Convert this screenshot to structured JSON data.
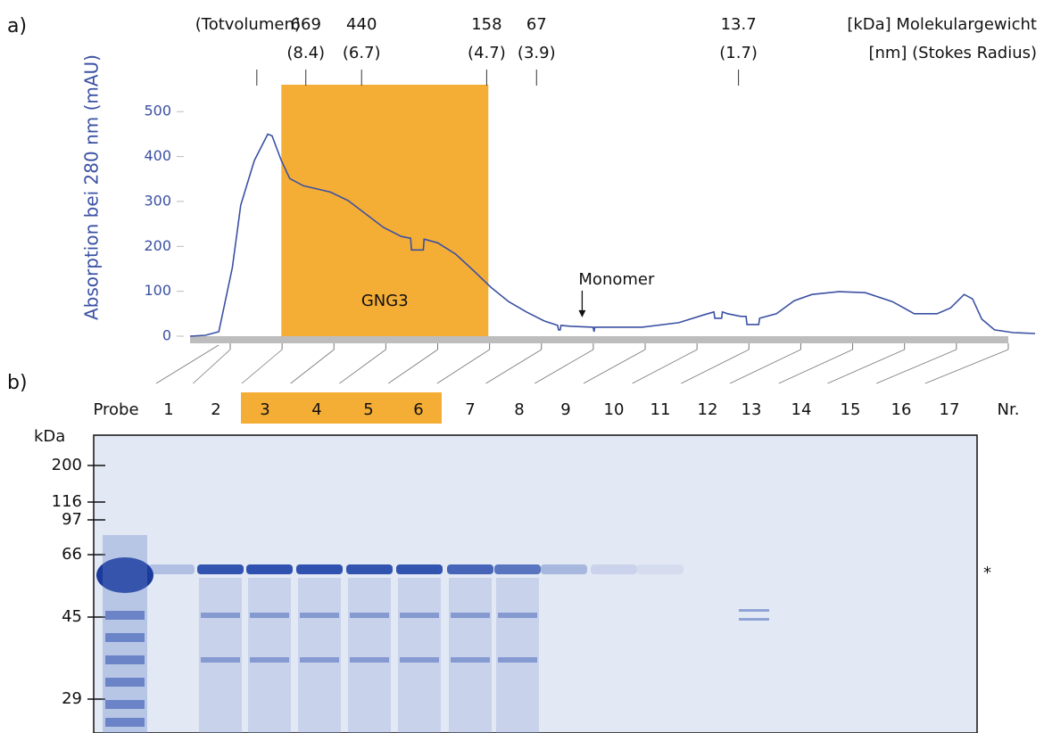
{
  "panel_labels": [
    "a)",
    "b)"
  ],
  "chart_data": {
    "type": "line",
    "y_label": "Absorption bei 280 nm (mAU)",
    "ylim": [
      0,
      560
    ],
    "yticks": [
      0,
      100,
      200,
      300,
      400,
      500
    ],
    "xlim": [
      0,
      100
    ],
    "x": [
      0,
      1.8,
      3.4,
      5.0,
      6.0,
      7.6,
      9.2,
      9.7,
      10.8,
      11.8,
      13.4,
      16.6,
      18.7,
      20.8,
      22.9,
      25.0,
      26.1,
      26.2,
      27.6,
      27.7,
      29.3,
      31.4,
      33.5,
      35.6,
      37.7,
      39.8,
      41.9,
      43.5,
      43.6,
      43.8,
      43.9,
      45.1,
      47.7,
      47.8,
      47.9,
      49.3,
      53.5,
      57.8,
      60.9,
      62.0,
      62.1,
      62.9,
      63.0,
      63.6,
      65.2,
      65.8,
      65.9,
      67.3,
      67.4,
      69.4,
      71.5,
      73.6,
      76.8,
      79.9,
      83.1,
      85.7,
      88.4,
      90.0,
      91.6,
      92.6,
      93.7,
      95.2,
      97.4,
      100
    ],
    "series": [
      {
        "color": "#3b51a3",
        "values": [
          0,
          2,
          10,
          153,
          292,
          391,
          450,
          446,
          391,
          351,
          335,
          321,
          302,
          272,
          242,
          222,
          218,
          192,
          192,
          216,
          208,
          183,
          147,
          109,
          77,
          54,
          34,
          24,
          14,
          14,
          24,
          22,
          20,
          10,
          20,
          20,
          20,
          30,
          48,
          54,
          40,
          40,
          54,
          50,
          44,
          44,
          26,
          26,
          40,
          50,
          79,
          93,
          99,
          97,
          77,
          50,
          50,
          63,
          93,
          83,
          38,
          14,
          8,
          6
        ]
      }
    ],
    "top_axis": {
      "markers": [
        {
          "x": 7.9,
          "label": "(Totvolumen)"
        },
        {
          "x": 13.7,
          "kda": 669,
          "radius": "(8.4)"
        },
        {
          "x": 20.3,
          "kda": 440,
          "radius": "(6.7)"
        },
        {
          "x": 35.1,
          "kda": 158,
          "radius": "(4.7)"
        },
        {
          "x": 41.0,
          "kda": 67,
          "radius": "(3.9)"
        },
        {
          "x": 64.9,
          "kda": 13.7,
          "radius": "(1.7)"
        }
      ],
      "kda_title": "[kDa] Molekulargewicht",
      "radius_title": "[nm] (Stokes Radius)"
    },
    "highlight": {
      "x": [
        10.8,
        35.3
      ],
      "label": "GNG3",
      "color": "#f5ae35"
    },
    "annotation": {
      "x": 46.4,
      "y": 30,
      "label": "Monomer"
    }
  },
  "gel": {
    "y_label": "kDa",
    "yticks": [
      200,
      116,
      97,
      66,
      45,
      29
    ],
    "lanes": [
      {
        "label": "Probe"
      },
      {
        "label": "1"
      },
      {
        "label": "2"
      },
      {
        "label": "3",
        "highlight": true
      },
      {
        "label": "4",
        "highlight": true
      },
      {
        "label": "5",
        "highlight": true
      },
      {
        "label": "6",
        "highlight": true
      },
      {
        "label": "7"
      },
      {
        "label": "8"
      },
      {
        "label": "9"
      },
      {
        "label": "10"
      },
      {
        "label": "11"
      },
      {
        "label": "12"
      },
      {
        "label": "13"
      },
      {
        "label": "14"
      },
      {
        "label": "15"
      },
      {
        "label": "16"
      },
      {
        "label": "17"
      },
      {
        "label": "Nr."
      }
    ],
    "annotation": "*"
  }
}
